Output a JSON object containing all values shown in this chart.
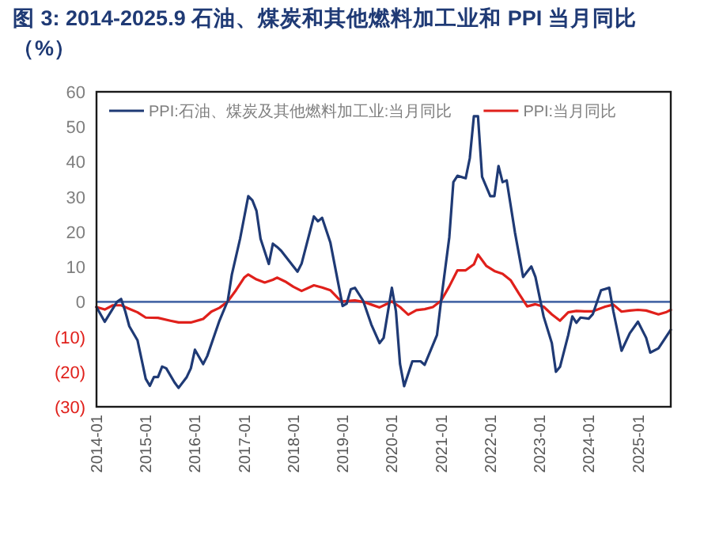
{
  "chart_data": {
    "type": "line",
    "title": "图 3: 2014-2025.9 石油、煤炭和其他燃料加工业和 PPI 当月同比（%）",
    "xlim": [
      "2014-01",
      "2025-09"
    ],
    "xticks": [
      {
        "value": "2014-01",
        "label": "2014-01"
      },
      {
        "value": "2015-01",
        "label": "2015-01"
      },
      {
        "value": "2016-01",
        "label": "2016-01"
      },
      {
        "value": "2017-01",
        "label": "2017-01"
      },
      {
        "value": "2018-01",
        "label": "2018-01"
      },
      {
        "value": "2019-01",
        "label": "2019-01"
      },
      {
        "value": "2020-01",
        "label": "2020-01"
      },
      {
        "value": "2021-01",
        "label": "2021-01"
      },
      {
        "value": "2022-01",
        "label": "2022-01"
      },
      {
        "value": "2023-01",
        "label": "2023-01"
      },
      {
        "value": "2024-01",
        "label": "2024-01"
      },
      {
        "value": "2025-01",
        "label": "2025-01"
      }
    ],
    "ylim": [
      -30,
      60
    ],
    "yticks": [
      {
        "value": -30,
        "label": "(30)"
      },
      {
        "value": -20,
        "label": "(20)"
      },
      {
        "value": -10,
        "label": "(10)"
      },
      0,
      10,
      20,
      30,
      40,
      50,
      60
    ],
    "grid": false,
    "legend": "top",
    "ref_lines": [
      {
        "axis": "y",
        "value": 0,
        "color": "#4a6aa8"
      }
    ],
    "series": [
      {
        "name": "PPI:石油、煤炭及其他燃料加工业:当月同比",
        "color": "#1f3a75",
        "x": [
          "2014-01",
          "2014-03",
          "2014-06",
          "2014-07",
          "2014-08",
          "2014-09",
          "2014-11",
          "2015-01",
          "2015-02",
          "2015-03",
          "2015-04",
          "2015-05",
          "2015-06",
          "2015-08",
          "2015-09",
          "2015-11",
          "2015-12",
          "2016-01",
          "2016-03",
          "2016-04",
          "2016-06",
          "2016-07",
          "2016-09",
          "2016-10",
          "2016-12",
          "2017-02",
          "2017-03",
          "2017-04",
          "2017-05",
          "2017-07",
          "2017-08",
          "2017-09",
          "2017-10",
          "2017-12",
          "2018-02",
          "2018-03",
          "2018-06",
          "2018-07",
          "2018-08",
          "2018-10",
          "2019-01",
          "2019-02",
          "2019-03",
          "2019-04",
          "2019-06",
          "2019-08",
          "2019-10",
          "2019-11",
          "2020-01",
          "2020-02",
          "2020-03",
          "2020-04",
          "2020-06",
          "2020-08",
          "2020-09",
          "2020-12",
          "2021-01",
          "2021-03",
          "2021-04",
          "2021-05",
          "2021-07",
          "2021-08",
          "2021-09",
          "2021-10",
          "2021-11",
          "2022-01",
          "2022-02",
          "2022-03",
          "2022-04",
          "2022-05",
          "2022-07",
          "2022-09",
          "2022-10",
          "2022-11",
          "2022-12",
          "2023-02",
          "2023-04",
          "2023-05",
          "2023-06",
          "2023-08",
          "2023-09",
          "2023-10",
          "2023-11",
          "2024-01",
          "2024-02",
          "2024-04",
          "2024-06",
          "2024-07",
          "2024-09",
          "2024-11",
          "2025-01",
          "2025-03",
          "2025-04",
          "2025-06",
          "2025-09"
        ],
        "values": [
          -1.5,
          -5.7,
          0,
          0.8,
          -2.7,
          -7,
          -11,
          -22,
          -24,
          -21.5,
          -21.5,
          -18.5,
          -19,
          -23,
          -24.6,
          -21.5,
          -19,
          -13.7,
          -17.8,
          -15.5,
          -8.7,
          -5.3,
          0.3,
          7.8,
          18,
          30.2,
          29,
          26,
          18,
          10.8,
          16.6,
          15.7,
          14.6,
          11.6,
          8.6,
          10.9,
          24.4,
          23,
          24,
          17,
          -1.2,
          -0.5,
          3.6,
          4,
          0.3,
          -6.5,
          -11.8,
          -10.3,
          4,
          -2.7,
          -17.8,
          -24.1,
          -17,
          -17,
          -18,
          -9.5,
          0.3,
          18.4,
          34.2,
          36,
          35.3,
          41,
          53,
          53,
          35.7,
          30.2,
          30.2,
          38.8,
          34.2,
          34.7,
          19.9,
          7.1,
          8.6,
          10.1,
          7.1,
          -4.2,
          -11.8,
          -20,
          -18.6,
          -9.5,
          -4.2,
          -6,
          -4.5,
          -4.8,
          -3.5,
          3.3,
          4,
          -2.7,
          -14,
          -9,
          -5.7,
          -10.3,
          -14.5,
          -13.3,
          -8
        ]
      },
      {
        "name": "PPI:当月同比",
        "color": "#e0201b",
        "x": [
          "2014-01",
          "2014-03",
          "2014-05",
          "2014-07",
          "2014-09",
          "2014-11",
          "2015-01",
          "2015-04",
          "2015-07",
          "2015-09",
          "2015-12",
          "2016-03",
          "2016-05",
          "2016-07",
          "2016-09",
          "2016-11",
          "2017-01",
          "2017-02",
          "2017-04",
          "2017-06",
          "2017-08",
          "2017-09",
          "2017-11",
          "2018-01",
          "2018-03",
          "2018-06",
          "2018-08",
          "2018-10",
          "2018-12",
          "2019-01",
          "2019-04",
          "2019-06",
          "2019-08",
          "2019-10",
          "2019-12",
          "2020-01",
          "2020-03",
          "2020-05",
          "2020-07",
          "2020-09",
          "2020-11",
          "2021-01",
          "2021-03",
          "2021-05",
          "2021-07",
          "2021-09",
          "2021-10",
          "2021-12",
          "2022-02",
          "2022-04",
          "2022-06",
          "2022-08",
          "2022-10",
          "2022-12",
          "2023-02",
          "2023-04",
          "2023-06",
          "2023-08",
          "2023-10",
          "2023-12",
          "2024-02",
          "2024-05",
          "2024-07",
          "2024-09",
          "2024-11",
          "2025-01",
          "2025-03",
          "2025-06",
          "2025-08",
          "2025-09"
        ],
        "values": [
          -1.5,
          -2.2,
          -1,
          -1,
          -2,
          -3,
          -4.5,
          -4.6,
          -5.4,
          -5.9,
          -5.9,
          -4.9,
          -2.8,
          -1.7,
          0.1,
          3.3,
          6.9,
          7.8,
          6.4,
          5.5,
          6.3,
          6.9,
          5.8,
          4.3,
          3.1,
          4.7,
          4.1,
          3.3,
          0.9,
          0.1,
          0.4,
          0,
          -0.8,
          -1.6,
          -0.5,
          0.1,
          -1.5,
          -3.7,
          -2.4,
          -2.1,
          -1.5,
          0.3,
          4.4,
          9,
          9,
          10.7,
          13.5,
          10.3,
          8.8,
          8,
          6.1,
          2.3,
          -1.3,
          -0.7,
          -1.4,
          -3.6,
          -5.4,
          -3,
          -2.6,
          -2.7,
          -2.7,
          -1.4,
          -0.8,
          -2.8,
          -2.5,
          -2.3,
          -2.5,
          -3.6,
          -2.9,
          -2.3
        ]
      }
    ]
  }
}
